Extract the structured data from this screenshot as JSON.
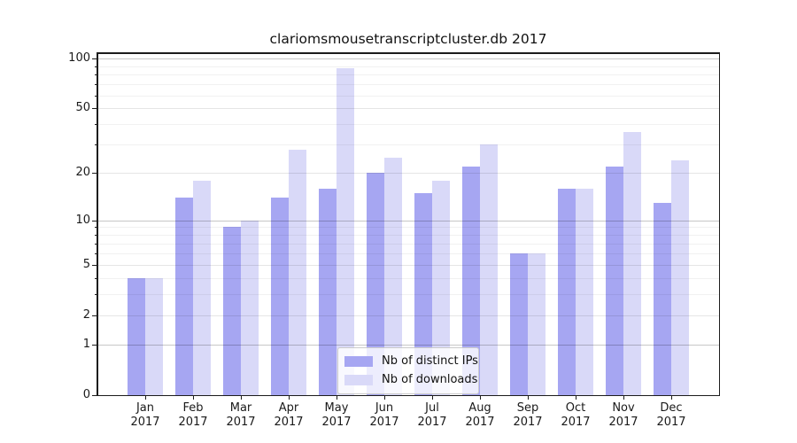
{
  "chart_data": {
    "type": "bar",
    "title": "clariomsmousetranscriptcluster.db 2017",
    "categories": [
      "Jan",
      "Feb",
      "Mar",
      "Apr",
      "May",
      "Jun",
      "Jul",
      "Aug",
      "Sep",
      "Oct",
      "Nov",
      "Dec"
    ],
    "x_sublabel": "2017",
    "series": [
      {
        "name": "Nb of distinct IPs",
        "color": "#a6a6f2",
        "values": [
          4,
          14,
          9,
          14,
          16,
          20,
          15,
          22,
          6,
          16,
          22,
          13
        ]
      },
      {
        "name": "Nb of downloads",
        "color": "#d9d9f8",
        "values": [
          4,
          18,
          10,
          28,
          87,
          25,
          18,
          30,
          6,
          16,
          36,
          24
        ]
      }
    ],
    "yscale": "log10(1+x)",
    "ylim": [
      0,
      108
    ],
    "yticks": [
      0,
      1,
      2,
      5,
      10,
      20,
      50,
      100
    ],
    "decade_yticks": [
      1,
      10,
      100
    ],
    "minor_yticks": [
      3,
      4,
      6,
      7,
      8,
      9,
      30,
      40,
      60,
      70,
      80,
      90
    ],
    "grid": true,
    "legend_position": "lower center",
    "xlabel": "",
    "ylabel": ""
  },
  "colors": {
    "bar_distinct_ips": "#a6a6f2",
    "bar_downloads": "#d9d9f8",
    "spine": "#1c1c1c",
    "tick_text": "#1a1a1a",
    "legend_border": "#cccccc"
  }
}
